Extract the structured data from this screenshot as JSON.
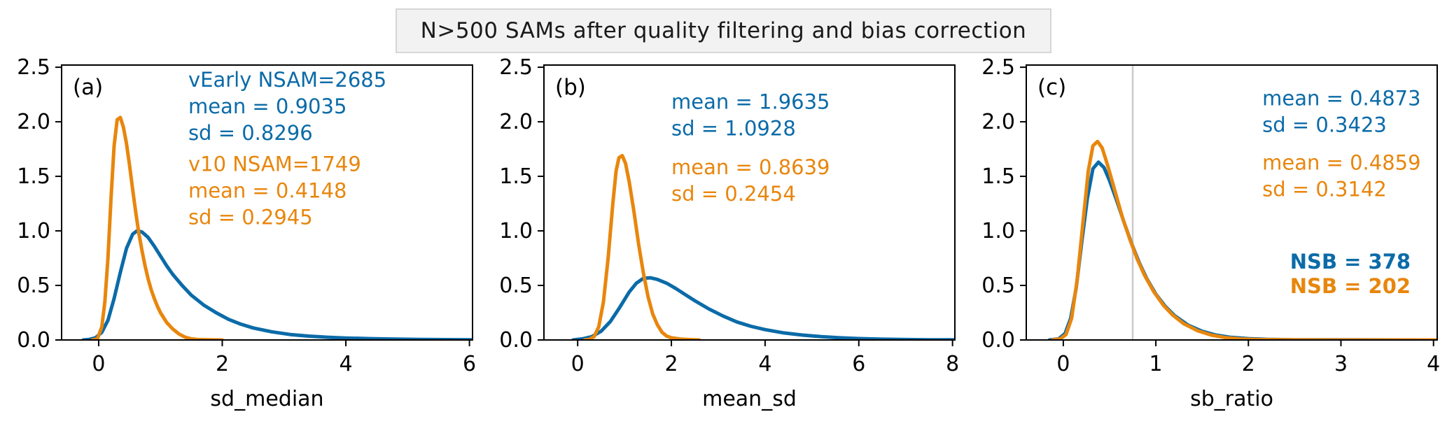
{
  "title": {
    "text": "N>500 SAMs after quality filtering and bias correction"
  },
  "colors": {
    "series1": "#0b6ba8",
    "series2": "#e8860d",
    "vline": "#c9c9c9",
    "axis": "#000000"
  },
  "chart_data": {
    "type": "line",
    "title": "N>500 SAMs after quality filtering and bias correction",
    "series_names": [
      "vEarly",
      "v10"
    ],
    "legend_position": "none",
    "grid": false,
    "panels": [
      {
        "label": "(a)",
        "xlabel": "sd_median",
        "xlim": [
          -0.6,
          6.05
        ],
        "ylim": [
          0,
          2.52
        ],
        "xticks": [
          0,
          2,
          4,
          6
        ],
        "xticklabels": [
          "0",
          "2",
          "4",
          "6"
        ],
        "yticks": [
          0,
          0.5,
          1.0,
          1.5,
          2.0,
          2.5
        ],
        "yticklabels": [
          "0.0",
          "0.5",
          "1.0",
          "1.5",
          "2.0",
          "2.5"
        ],
        "series": [
          {
            "name": "vEarly",
            "color_key": "series1",
            "peak": [
              0.62,
              1.0
            ],
            "points": [
              [
                -0.25,
                0
              ],
              [
                -0.15,
                0.005
              ],
              [
                -0.05,
                0.02
              ],
              [
                0.05,
                0.07
              ],
              [
                0.15,
                0.18
              ],
              [
                0.25,
                0.38
              ],
              [
                0.35,
                0.62
              ],
              [
                0.45,
                0.84
              ],
              [
                0.55,
                0.97
              ],
              [
                0.62,
                1.0
              ],
              [
                0.7,
                0.99
              ],
              [
                0.8,
                0.94
              ],
              [
                0.9,
                0.86
              ],
              [
                1.0,
                0.77
              ],
              [
                1.1,
                0.68
              ],
              [
                1.2,
                0.6
              ],
              [
                1.35,
                0.5
              ],
              [
                1.5,
                0.41
              ],
              [
                1.7,
                0.32
              ],
              [
                1.9,
                0.25
              ],
              [
                2.1,
                0.19
              ],
              [
                2.3,
                0.145
              ],
              [
                2.5,
                0.11
              ],
              [
                2.8,
                0.075
              ],
              [
                3.1,
                0.05
              ],
              [
                3.4,
                0.035
              ],
              [
                3.7,
                0.025
              ],
              [
                4.0,
                0.018
              ],
              [
                4.4,
                0.012
              ],
              [
                4.8,
                0.008
              ],
              [
                5.2,
                0.005
              ],
              [
                5.6,
                0.003
              ],
              [
                6.05,
                0.002
              ]
            ]
          },
          {
            "name": "v10",
            "color_key": "series2",
            "peak": [
              0.32,
              2.04
            ],
            "points": [
              [
                -0.1,
                0
              ],
              [
                -0.02,
                0.01
              ],
              [
                0.05,
                0.12
              ],
              [
                0.1,
                0.35
              ],
              [
                0.15,
                0.75
              ],
              [
                0.2,
                1.3
              ],
              [
                0.25,
                1.78
              ],
              [
                0.3,
                2.02
              ],
              [
                0.35,
                2.04
              ],
              [
                0.4,
                1.95
              ],
              [
                0.45,
                1.8
              ],
              [
                0.5,
                1.6
              ],
              [
                0.55,
                1.38
              ],
              [
                0.6,
                1.17
              ],
              [
                0.65,
                0.98
              ],
              [
                0.7,
                0.82
              ],
              [
                0.75,
                0.68
              ],
              [
                0.8,
                0.56
              ],
              [
                0.85,
                0.46
              ],
              [
                0.9,
                0.38
              ],
              [
                0.95,
                0.31
              ],
              [
                1.0,
                0.25
              ],
              [
                1.1,
                0.16
              ],
              [
                1.2,
                0.1
              ],
              [
                1.3,
                0.055
              ],
              [
                1.4,
                0.025
              ],
              [
                1.5,
                0.01
              ],
              [
                1.6,
                0.004
              ],
              [
                1.8,
                0.001
              ],
              [
                2.0,
                0
              ]
            ]
          }
        ],
        "annotations": [
          {
            "color_key": "series1",
            "bold": false,
            "x": 1.45,
            "y": 2.32,
            "lines": [
              "vEarly NSAM=2685",
              "mean = 0.9035",
              "sd = 0.8296"
            ]
          },
          {
            "color_key": "series2",
            "bold": false,
            "x": 1.45,
            "y": 1.55,
            "lines": [
              "v10 NSAM=1749",
              "mean = 0.4148",
              "sd = 0.2945"
            ]
          }
        ]
      },
      {
        "label": "(b)",
        "xlabel": "mean_sd",
        "xlim": [
          -0.72,
          8.05
        ],
        "ylim": [
          0,
          2.52
        ],
        "xticks": [
          0,
          2,
          4,
          6,
          8
        ],
        "xticklabels": [
          "0",
          "2",
          "4",
          "6",
          "8"
        ],
        "yticks": [
          0,
          0.5,
          1.0,
          1.5,
          2.0,
          2.5
        ],
        "yticklabels": [
          "0.0",
          "0.5",
          "1.0",
          "1.5",
          "2.0",
          "2.5"
        ],
        "series": [
          {
            "name": "vEarly",
            "color_key": "series1",
            "peak": [
              1.55,
              0.57
            ],
            "points": [
              [
                -0.1,
                0
              ],
              [
                0.1,
                0.01
              ],
              [
                0.3,
                0.03
              ],
              [
                0.5,
                0.08
              ],
              [
                0.7,
                0.17
              ],
              [
                0.9,
                0.3
              ],
              [
                1.1,
                0.44
              ],
              [
                1.25,
                0.52
              ],
              [
                1.4,
                0.565
              ],
              [
                1.55,
                0.57
              ],
              [
                1.7,
                0.555
              ],
              [
                1.9,
                0.52
              ],
              [
                2.1,
                0.47
              ],
              [
                2.3,
                0.415
              ],
              [
                2.5,
                0.36
              ],
              [
                2.8,
                0.285
              ],
              [
                3.1,
                0.22
              ],
              [
                3.4,
                0.165
              ],
              [
                3.7,
                0.125
              ],
              [
                4.0,
                0.095
              ],
              [
                4.4,
                0.065
              ],
              [
                4.8,
                0.045
              ],
              [
                5.2,
                0.03
              ],
              [
                5.6,
                0.02
              ],
              [
                6.0,
                0.013
              ],
              [
                6.5,
                0.007
              ],
              [
                7.0,
                0.004
              ],
              [
                7.5,
                0.002
              ],
              [
                8.05,
                0.001
              ]
            ]
          },
          {
            "name": "v10",
            "color_key": "series2",
            "peak": [
              0.95,
              1.69
            ],
            "points": [
              [
                0.15,
                0
              ],
              [
                0.25,
                0.005
              ],
              [
                0.35,
                0.03
              ],
              [
                0.45,
                0.12
              ],
              [
                0.55,
                0.35
              ],
              [
                0.65,
                0.75
              ],
              [
                0.75,
                1.25
              ],
              [
                0.82,
                1.55
              ],
              [
                0.88,
                1.67
              ],
              [
                0.95,
                1.69
              ],
              [
                1.02,
                1.62
              ],
              [
                1.1,
                1.45
              ],
              [
                1.2,
                1.18
              ],
              [
                1.3,
                0.88
              ],
              [
                1.4,
                0.62
              ],
              [
                1.5,
                0.4
              ],
              [
                1.6,
                0.24
              ],
              [
                1.7,
                0.14
              ],
              [
                1.8,
                0.07
              ],
              [
                1.9,
                0.035
              ],
              [
                2.0,
                0.02
              ],
              [
                2.2,
                0.008
              ],
              [
                2.4,
                0.003
              ],
              [
                2.6,
                0
              ]
            ]
          }
        ],
        "annotations": [
          {
            "color_key": "series1",
            "bold": false,
            "x": 2.0,
            "y": 2.12,
            "lines": [
              "mean = 1.9635",
              "sd = 1.0928"
            ]
          },
          {
            "color_key": "series2",
            "bold": false,
            "x": 2.0,
            "y": 1.52,
            "lines": [
              "mean = 0.8639",
              "sd = 0.2454"
            ]
          }
        ]
      },
      {
        "label": "(c)",
        "xlabel": "sb_ratio",
        "xlim": [
          -0.4,
          4.04
        ],
        "ylim": [
          0,
          2.52
        ],
        "xticks": [
          0,
          1,
          2,
          3,
          4
        ],
        "xticklabels": [
          "0",
          "1",
          "2",
          "3",
          "4"
        ],
        "yticks": [
          0,
          0.5,
          1.0,
          1.5,
          2.0,
          2.5
        ],
        "yticklabels": [
          "0.0",
          "0.5",
          "1.0",
          "1.5",
          "2.0",
          "2.5"
        ],
        "vline": 0.75,
        "series": [
          {
            "name": "vEarly",
            "color_key": "series1",
            "peak": [
              0.38,
              1.63
            ],
            "points": [
              [
                -0.15,
                0
              ],
              [
                -0.05,
                0.01
              ],
              [
                0.02,
                0.06
              ],
              [
                0.08,
                0.2
              ],
              [
                0.14,
                0.48
              ],
              [
                0.2,
                0.9
              ],
              [
                0.26,
                1.3
              ],
              [
                0.32,
                1.57
              ],
              [
                0.38,
                1.63
              ],
              [
                0.44,
                1.58
              ],
              [
                0.5,
                1.46
              ],
              [
                0.58,
                1.27
              ],
              [
                0.66,
                1.07
              ],
              [
                0.74,
                0.88
              ],
              [
                0.82,
                0.71
              ],
              [
                0.9,
                0.565
              ],
              [
                1.0,
                0.42
              ],
              [
                1.1,
                0.31
              ],
              [
                1.2,
                0.225
              ],
              [
                1.35,
                0.135
              ],
              [
                1.5,
                0.08
              ],
              [
                1.65,
                0.045
              ],
              [
                1.8,
                0.025
              ],
              [
                2.0,
                0.012
              ],
              [
                2.2,
                0.006
              ],
              [
                2.5,
                0.002
              ],
              [
                3.0,
                0.001
              ],
              [
                4.04,
                0
              ]
            ]
          },
          {
            "name": "v10",
            "color_key": "series2",
            "peak": [
              0.37,
              1.82
            ],
            "points": [
              [
                -0.12,
                0
              ],
              [
                -0.03,
                0.01
              ],
              [
                0.03,
                0.05
              ],
              [
                0.09,
                0.2
              ],
              [
                0.15,
                0.55
              ],
              [
                0.21,
                1.05
              ],
              [
                0.27,
                1.55
              ],
              [
                0.32,
                1.78
              ],
              [
                0.37,
                1.82
              ],
              [
                0.42,
                1.76
              ],
              [
                0.48,
                1.6
              ],
              [
                0.56,
                1.36
              ],
              [
                0.64,
                1.12
              ],
              [
                0.72,
                0.92
              ],
              [
                0.8,
                0.74
              ],
              [
                0.88,
                0.59
              ],
              [
                0.98,
                0.44
              ],
              [
                1.08,
                0.32
              ],
              [
                1.18,
                0.23
              ],
              [
                1.3,
                0.15
              ],
              [
                1.45,
                0.085
              ],
              [
                1.6,
                0.045
              ],
              [
                1.75,
                0.022
              ],
              [
                1.9,
                0.01
              ],
              [
                2.1,
                0.004
              ],
              [
                2.4,
                0.001
              ],
              [
                3.0,
                0
              ],
              [
                4.04,
                0
              ]
            ]
          }
        ],
        "annotations": [
          {
            "color_key": "series1",
            "bold": false,
            "x": 2.15,
            "y": 2.15,
            "lines": [
              "mean = 0.4873",
              "sd = 0.3423"
            ]
          },
          {
            "color_key": "series2",
            "bold": false,
            "x": 2.15,
            "y": 1.56,
            "lines": [
              "mean = 0.4859",
              "sd = 0.3142"
            ]
          },
          {
            "color_key": "series1",
            "bold": true,
            "x": 2.45,
            "y": 0.655,
            "lines": [
              "NSB = 378"
            ]
          },
          {
            "color_key": "series2",
            "bold": true,
            "x": 2.45,
            "y": 0.43,
            "lines": [
              "NSB = 202"
            ]
          }
        ]
      }
    ]
  }
}
